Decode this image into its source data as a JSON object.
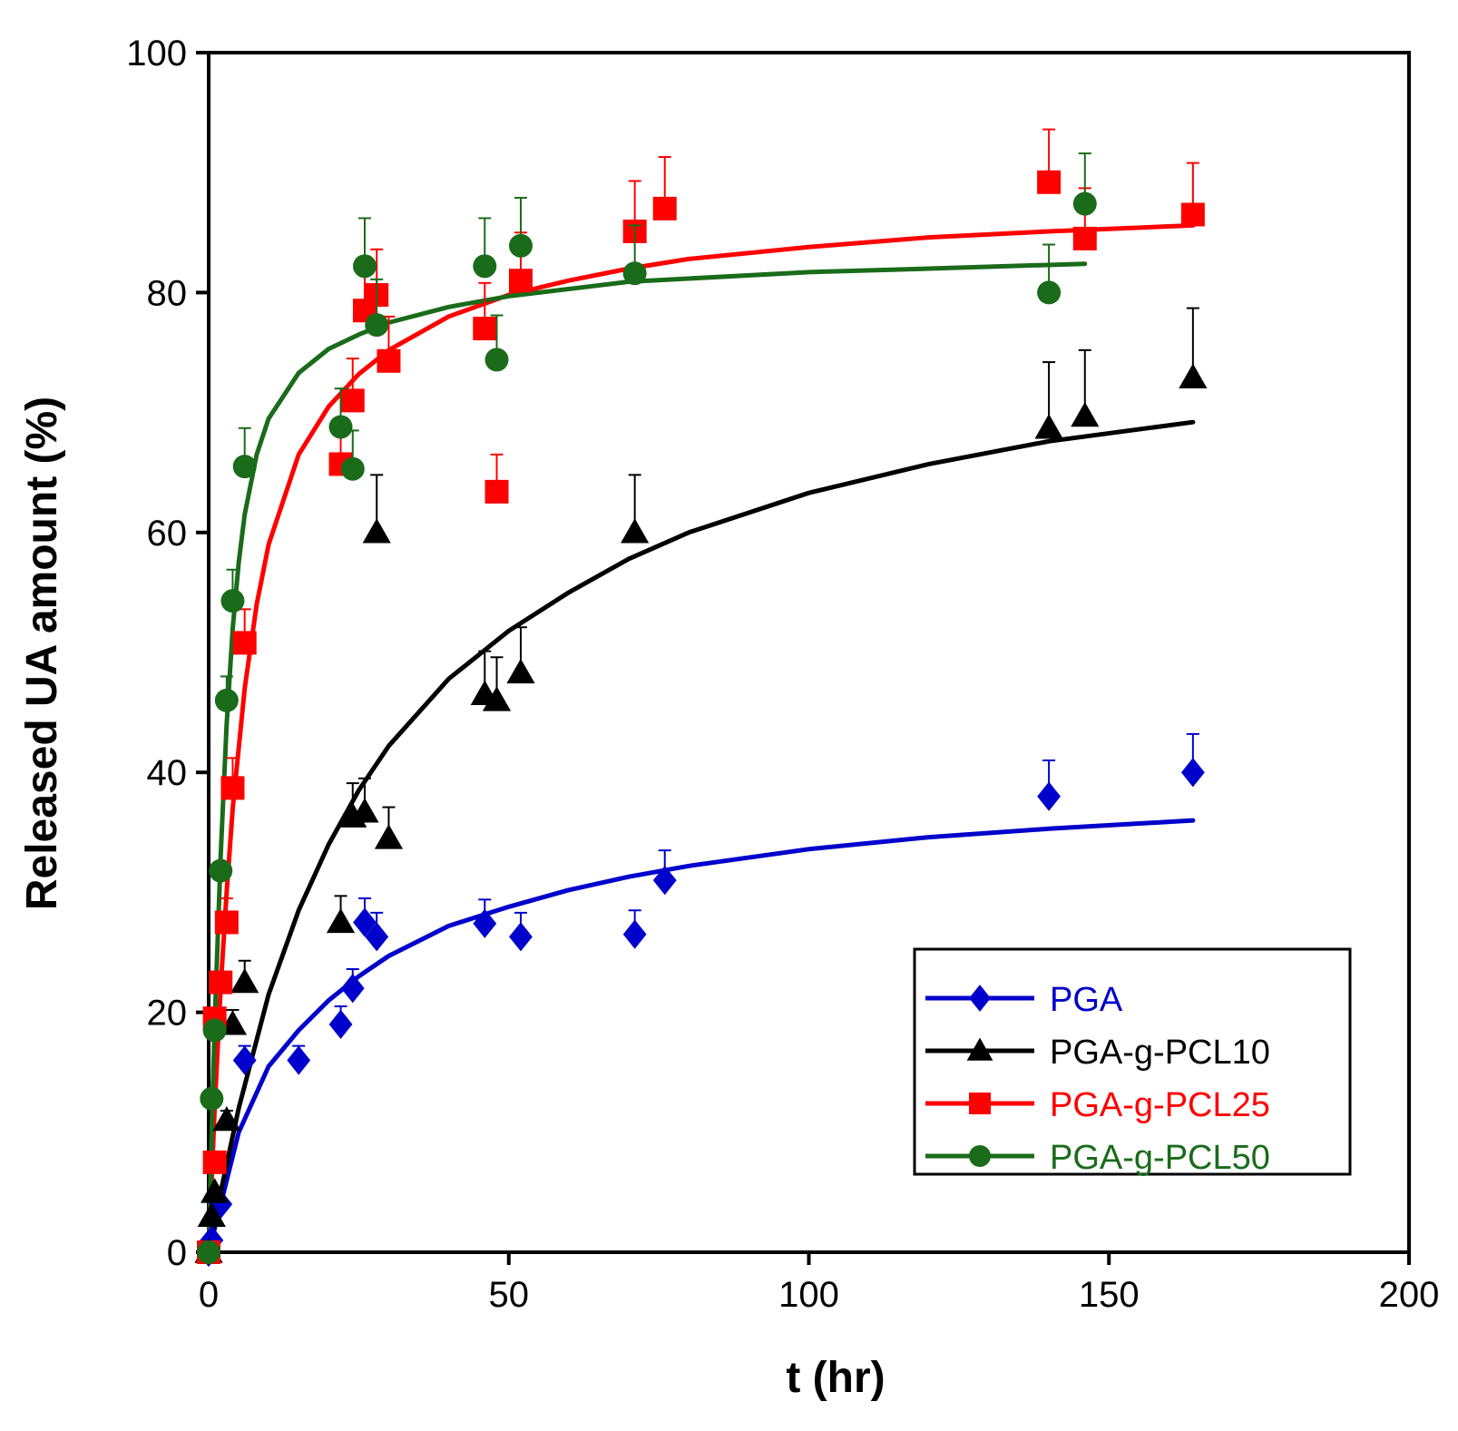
{
  "chart_data": {
    "type": "scatter",
    "title": "",
    "xlabel": "t (hr)",
    "ylabel": "Released UA amount (%)",
    "xlim": [
      0,
      200
    ],
    "ylim": [
      0,
      100
    ],
    "xticks": [
      0,
      50,
      100,
      150,
      200
    ],
    "yticks": [
      0,
      20,
      40,
      60,
      80,
      100
    ],
    "grid": false,
    "legend_position": "bottom-right",
    "series": [
      {
        "name": "PGA",
        "color": "#0000cc",
        "marker": "diamond",
        "points": [
          {
            "x": 0,
            "y": 0,
            "err": 0
          },
          {
            "x": 0.5,
            "y": 1,
            "err": 0
          },
          {
            "x": 2,
            "y": 4,
            "err": 0
          },
          {
            "x": 6,
            "y": 16,
            "err": 1.2
          },
          {
            "x": 15,
            "y": 16,
            "err": 1.2
          },
          {
            "x": 22,
            "y": 19,
            "err": 1.5
          },
          {
            "x": 24,
            "y": 22,
            "err": 1.6
          },
          {
            "x": 26,
            "y": 27.5,
            "err": 2
          },
          {
            "x": 28,
            "y": 26.3,
            "err": 2
          },
          {
            "x": 46,
            "y": 27.4,
            "err": 2
          },
          {
            "x": 52,
            "y": 26.3,
            "err": 2
          },
          {
            "x": 71,
            "y": 26.5,
            "err": 2
          },
          {
            "x": 76,
            "y": 31,
            "err": 2.5
          },
          {
            "x": 140,
            "y": 38,
            "err": 3
          },
          {
            "x": 164,
            "y": 40,
            "err": 3.2
          }
        ],
        "fit": [
          {
            "x": 0,
            "y": 0
          },
          {
            "x": 5,
            "y": 10
          },
          {
            "x": 10,
            "y": 15.5
          },
          {
            "x": 15,
            "y": 18.5
          },
          {
            "x": 20,
            "y": 21
          },
          {
            "x": 25,
            "y": 23
          },
          {
            "x": 30,
            "y": 24.7
          },
          {
            "x": 40,
            "y": 27.2
          },
          {
            "x": 50,
            "y": 28.8
          },
          {
            "x": 60,
            "y": 30.2
          },
          {
            "x": 70,
            "y": 31.3
          },
          {
            "x": 80,
            "y": 32.2
          },
          {
            "x": 100,
            "y": 33.6
          },
          {
            "x": 120,
            "y": 34.6
          },
          {
            "x": 140,
            "y": 35.3
          },
          {
            "x": 164,
            "y": 36
          }
        ]
      },
      {
        "name": "PGA-g-PCL10",
        "color": "#000000",
        "marker": "triangle",
        "points": [
          {
            "x": 0,
            "y": 0,
            "err": 0
          },
          {
            "x": 0.5,
            "y": 3,
            "err": 0
          },
          {
            "x": 1,
            "y": 5,
            "err": 0
          },
          {
            "x": 3,
            "y": 11,
            "err": 0.8
          },
          {
            "x": 4,
            "y": 19,
            "err": 1.2
          },
          {
            "x": 6,
            "y": 22.5,
            "err": 1.8
          },
          {
            "x": 22,
            "y": 27.5,
            "err": 2.2
          },
          {
            "x": 24,
            "y": 36.3,
            "err": 2.8
          },
          {
            "x": 26,
            "y": 36.7,
            "err": 2.8
          },
          {
            "x": 28,
            "y": 60,
            "err": 4.8
          },
          {
            "x": 30,
            "y": 34.5,
            "err": 2.6
          },
          {
            "x": 46,
            "y": 46.5,
            "err": 3.6
          },
          {
            "x": 48,
            "y": 46,
            "err": 3.6
          },
          {
            "x": 52,
            "y": 48.3,
            "err": 3.8
          },
          {
            "x": 71,
            "y": 60,
            "err": 4.8
          },
          {
            "x": 140,
            "y": 68.7,
            "err": 5.5
          },
          {
            "x": 146,
            "y": 69.7,
            "err": 5.5
          },
          {
            "x": 164,
            "y": 72.9,
            "err": 5.8
          }
        ],
        "fit": [
          {
            "x": 0,
            "y": 0
          },
          {
            "x": 2,
            "y": 5
          },
          {
            "x": 5,
            "y": 12
          },
          {
            "x": 10,
            "y": 21.5
          },
          {
            "x": 15,
            "y": 28.5
          },
          {
            "x": 20,
            "y": 34
          },
          {
            "x": 25,
            "y": 38.5
          },
          {
            "x": 30,
            "y": 42.2
          },
          {
            "x": 40,
            "y": 47.8
          },
          {
            "x": 50,
            "y": 51.8
          },
          {
            "x": 60,
            "y": 55
          },
          {
            "x": 70,
            "y": 57.8
          },
          {
            "x": 80,
            "y": 60
          },
          {
            "x": 100,
            "y": 63.3
          },
          {
            "x": 120,
            "y": 65.7
          },
          {
            "x": 140,
            "y": 67.6
          },
          {
            "x": 164,
            "y": 69.2
          }
        ]
      },
      {
        "name": "PGA-g-PCL25",
        "color": "#ff0000",
        "marker": "square",
        "points": [
          {
            "x": 0,
            "y": 0,
            "err": 0
          },
          {
            "x": 1,
            "y": 7.5,
            "err": 0
          },
          {
            "x": 1,
            "y": 19.5,
            "err": 0
          },
          {
            "x": 2,
            "y": 22.5,
            "err": 0
          },
          {
            "x": 3,
            "y": 27.5,
            "err": 2
          },
          {
            "x": 4,
            "y": 38.7,
            "err": 2.5
          },
          {
            "x": 6,
            "y": 50.8,
            "err": 2.8
          },
          {
            "x": 22,
            "y": 65.7,
            "err": 3.5
          },
          {
            "x": 24,
            "y": 71,
            "err": 3.5
          },
          {
            "x": 26,
            "y": 78.5,
            "err": 3.5
          },
          {
            "x": 28,
            "y": 79.8,
            "err": 3.8
          },
          {
            "x": 30,
            "y": 74.3,
            "err": 3.7
          },
          {
            "x": 46,
            "y": 77,
            "err": 3.8
          },
          {
            "x": 48,
            "y": 63.4,
            "err": 3.1
          },
          {
            "x": 52,
            "y": 81,
            "err": 4
          },
          {
            "x": 71,
            "y": 85.1,
            "err": 4.2
          },
          {
            "x": 76,
            "y": 87,
            "err": 4.3
          },
          {
            "x": 140,
            "y": 89.2,
            "err": 4.4
          },
          {
            "x": 146,
            "y": 84.5,
            "err": 4.2
          },
          {
            "x": 164,
            "y": 86.5,
            "err": 4.3
          }
        ],
        "fit": [
          {
            "x": 0,
            "y": 0
          },
          {
            "x": 1,
            "y": 12
          },
          {
            "x": 2,
            "y": 22
          },
          {
            "x": 3,
            "y": 30
          },
          {
            "x": 4,
            "y": 37
          },
          {
            "x": 6,
            "y": 47
          },
          {
            "x": 8,
            "y": 54
          },
          {
            "x": 10,
            "y": 59
          },
          {
            "x": 15,
            "y": 66.5
          },
          {
            "x": 20,
            "y": 70.5
          },
          {
            "x": 25,
            "y": 73.2
          },
          {
            "x": 30,
            "y": 75.2
          },
          {
            "x": 40,
            "y": 78
          },
          {
            "x": 50,
            "y": 79.8
          },
          {
            "x": 60,
            "y": 81
          },
          {
            "x": 70,
            "y": 82
          },
          {
            "x": 80,
            "y": 82.8
          },
          {
            "x": 100,
            "y": 83.8
          },
          {
            "x": 120,
            "y": 84.6
          },
          {
            "x": 140,
            "y": 85.1
          },
          {
            "x": 164,
            "y": 85.6
          }
        ]
      },
      {
        "name": "PGA-g-PCL50",
        "color": "#1a6b1a",
        "marker": "circle",
        "points": [
          {
            "x": 0,
            "y": 0,
            "err": 0
          },
          {
            "x": 0.5,
            "y": 12.8,
            "err": 0
          },
          {
            "x": 1,
            "y": 18.5,
            "err": 0
          },
          {
            "x": 2,
            "y": 31.8,
            "err": 0
          },
          {
            "x": 3,
            "y": 46,
            "err": 2
          },
          {
            "x": 4,
            "y": 54.3,
            "err": 2.6
          },
          {
            "x": 6,
            "y": 65.5,
            "err": 3.2
          },
          {
            "x": 22,
            "y": 68.8,
            "err": 3.2
          },
          {
            "x": 24,
            "y": 65.3,
            "err": 3.2
          },
          {
            "x": 26,
            "y": 82.2,
            "err": 4
          },
          {
            "x": 28,
            "y": 77.3,
            "err": 3.8
          },
          {
            "x": 46,
            "y": 82.2,
            "err": 4
          },
          {
            "x": 48,
            "y": 74.4,
            "err": 3.7
          },
          {
            "x": 52,
            "y": 83.9,
            "err": 4
          },
          {
            "x": 71,
            "y": 81.6,
            "err": 4
          },
          {
            "x": 140,
            "y": 80,
            "err": 4
          },
          {
            "x": 146,
            "y": 87.4,
            "err": 4.2
          }
        ],
        "fit": [
          {
            "x": 0,
            "y": 0
          },
          {
            "x": 0.5,
            "y": 10
          },
          {
            "x": 1,
            "y": 19
          },
          {
            "x": 2,
            "y": 33
          },
          {
            "x": 3,
            "y": 44
          },
          {
            "x": 4,
            "y": 52
          },
          {
            "x": 5,
            "y": 57.5
          },
          {
            "x": 6,
            "y": 61.5
          },
          {
            "x": 8,
            "y": 66.5
          },
          {
            "x": 10,
            "y": 69.5
          },
          {
            "x": 15,
            "y": 73.3
          },
          {
            "x": 20,
            "y": 75.3
          },
          {
            "x": 25,
            "y": 76.5
          },
          {
            "x": 30,
            "y": 77.5
          },
          {
            "x": 40,
            "y": 78.8
          },
          {
            "x": 50,
            "y": 79.7
          },
          {
            "x": 70,
            "y": 80.9
          },
          {
            "x": 100,
            "y": 81.7
          },
          {
            "x": 120,
            "y": 82
          },
          {
            "x": 146,
            "y": 82.4
          }
        ]
      }
    ]
  }
}
